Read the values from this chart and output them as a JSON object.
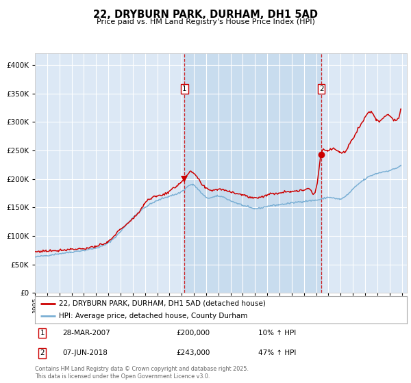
{
  "title": "22, DRYBURN PARK, DURHAM, DH1 5AD",
  "subtitle": "Price paid vs. HM Land Registry's House Price Index (HPI)",
  "legend_label_red": "22, DRYBURN PARK, DURHAM, DH1 5AD (detached house)",
  "legend_label_blue": "HPI: Average price, detached house, County Durham",
  "sale1_date_str": "28-MAR-2007",
  "sale1_price_str": "£200,000",
  "sale1_hpi_str": "10% ↑ HPI",
  "sale2_date_str": "07-JUN-2018",
  "sale2_price_str": "£243,000",
  "sale2_hpi_str": "47% ↑ HPI",
  "footer": "Contains HM Land Registry data © Crown copyright and database right 2025.\nThis data is licensed under the Open Government Licence v3.0.",
  "fig_bg": "#ffffff",
  "plot_bg": "#dce8f5",
  "red_color": "#cc0000",
  "blue_color": "#7aafd4",
  "shade_color": "#c8dcee",
  "ylim": [
    0,
    420000
  ],
  "yticks": [
    0,
    50000,
    100000,
    150000,
    200000,
    250000,
    300000,
    350000,
    400000
  ],
  "ytick_labels": [
    "£0",
    "£50K",
    "£100K",
    "£150K",
    "£200K",
    "£250K",
    "£300K",
    "£350K",
    "£400K"
  ],
  "start_year": 1995,
  "end_year": 2025
}
